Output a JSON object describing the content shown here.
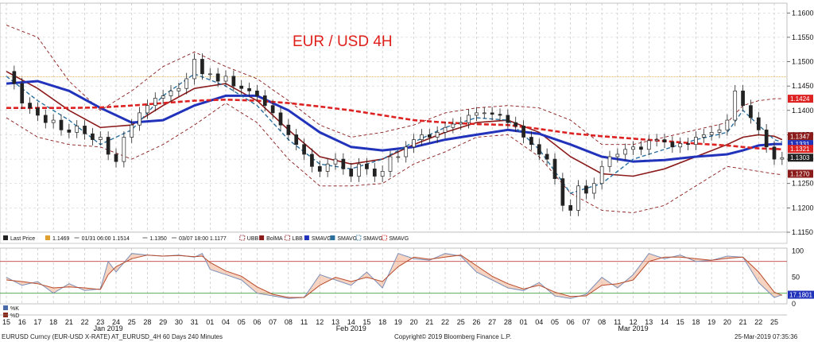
{
  "chart_data": {
    "type": "line",
    "title": "EUR / USD 4H",
    "footer": {
      "left": "EURUSD Curncy (EUR-USD X-RATE) AT_EURUSD_4H 60 Days 240 Minutes",
      "center": "Copyright© 2019 Bloomberg Finance L.P.",
      "right": "25-Mar-2019 07:35:36"
    },
    "colors": {
      "candle": "#222222",
      "ubb": "#8b1a1a",
      "bolma": "#8b1a1a",
      "sma_slow": "#2233bb",
      "sma_fast": "#2a6f9e",
      "sma_red": "#dd2222",
      "pivot": "#e0a030",
      "k_line": "#7a8fb8",
      "d_line": "#b84a2a",
      "fill_band": "#f0b090"
    },
    "legend": [
      {
        "label": "Last Price",
        "color": "#222222",
        "icon": "square-icon"
      },
      {
        "label": "1.1469",
        "color": "#e0a030",
        "icon": "square-icon"
      },
      {
        "label": "01/31 06:00 1.1514",
        "color": "#666666",
        "icon": "line-icon"
      },
      {
        "label": "1.1350",
        "color": "#666666",
        "icon": "line-icon"
      },
      {
        "label": "03/07 18:00 1.1177",
        "color": "#666666",
        "icon": "line-icon"
      },
      {
        "label": "UBB",
        "color": "#8b1a1a",
        "icon": "dash-icon"
      },
      {
        "label": "BolMA",
        "color": "#8b1a1a",
        "icon": "square-icon"
      },
      {
        "label": "LBB",
        "color": "#8b1a1a",
        "icon": "dash-icon"
      },
      {
        "label": "SMAVG",
        "color": "#2233bb",
        "icon": "square-icon"
      },
      {
        "label": "SMAVG",
        "color": "#2a6f9e",
        "icon": "square-icon"
      },
      {
        "label": "SMAVG",
        "color": "#2a6f9e",
        "icon": "dash-icon"
      },
      {
        "label": "SMAVG",
        "color": "#dd2222",
        "icon": "dash-icon"
      }
    ],
    "indicator_legend": [
      {
        "label": "%K",
        "color": "#4a6aa8"
      },
      {
        "label": "%D",
        "color": "#8b2a1a"
      }
    ],
    "x_day_labels": [
      "15",
      "16",
      "17",
      "18",
      "21",
      "22",
      "23",
      "24",
      "25",
      "28",
      "29",
      "30",
      "31",
      "01",
      "04",
      "05",
      "06",
      "07",
      "08",
      "11",
      "12",
      "13",
      "14",
      "15",
      "18",
      "19",
      "20",
      "21",
      "22",
      "25",
      "26",
      "27",
      "28",
      "01",
      "04",
      "05",
      "06",
      "07",
      "08",
      "11",
      "12",
      "13",
      "14",
      "15",
      "18",
      "19",
      "20",
      "21",
      "22",
      "25"
    ],
    "x_month_labels": [
      {
        "label": "Jan 2019",
        "index": 6.5
      },
      {
        "label": "Feb 2019",
        "index": 22
      },
      {
        "label": "Mar 2019",
        "index": 40
      }
    ],
    "price_axis": {
      "ylim": [
        1.115,
        1.162
      ],
      "ticks": [
        "1.1600",
        "1.1550",
        "1.1500",
        "1.1450",
        "1.1400",
        "1.1350",
        "1.1300",
        "1.1250",
        "1.1200",
        "1.1150"
      ]
    },
    "price_badges": [
      {
        "label": "1.1424",
        "value": 1.1424,
        "color": "#dd2222"
      },
      {
        "label": "1.1347",
        "value": 1.1347,
        "color": "#8b1a1a"
      },
      {
        "label": "1.1331",
        "value": 1.1331,
        "color": "#2233bb"
      },
      {
        "label": "1.1321",
        "value": 1.1321,
        "color": "#dd2222"
      },
      {
        "label": "1.1303",
        "value": 1.1303,
        "color": "#222222"
      },
      {
        "label": "1.1270",
        "value": 1.127,
        "color": "#8b1a1a"
      }
    ],
    "pivot_level": 1.1469,
    "indicator_axis": {
      "ylim": [
        0,
        105
      ],
      "ticks": [
        "100",
        "50",
        "0"
      ],
      "upper_level": 80,
      "lower_level": 20
    },
    "indicator_badge": {
      "label": "17.1801",
      "value": 17.18,
      "color": "#2233bb"
    },
    "series": [
      {
        "name": "Last Price",
        "x": [
          0,
          0.5,
          1,
          1.5,
          2,
          2.5,
          3,
          3.5,
          4,
          4.5,
          5,
          5.5,
          6,
          6.5,
          7,
          7.5,
          8,
          8.5,
          9,
          9.5,
          10,
          10.5,
          11,
          11.5,
          12,
          12.5,
          13,
          13.5,
          14,
          14.5,
          15,
          15.5,
          16,
          16.5,
          17,
          17.5,
          18,
          18.5,
          19,
          19.5,
          20,
          20.5,
          21,
          21.5,
          22,
          22.5,
          23,
          23.5,
          24,
          24.5,
          25,
          25.5,
          26,
          26.5,
          27,
          27.5,
          28,
          28.5,
          29,
          29.5,
          30,
          30.5,
          31,
          31.5,
          32,
          32.5,
          33,
          33.5,
          34,
          34.5,
          35,
          35.5,
          36,
          36.5,
          37,
          37.5,
          38,
          38.5,
          39,
          39.5,
          40,
          40.5,
          41,
          41.5,
          42,
          42.5,
          43,
          43.5,
          44,
          44.5,
          45,
          45.5,
          46,
          46.5,
          47,
          47.5,
          48,
          48.5,
          49,
          49.5
        ],
        "values": [
          1.148,
          1.1455,
          1.1415,
          1.1405,
          1.139,
          1.1375,
          1.138,
          1.136,
          1.1355,
          1.1368,
          1.1352,
          1.134,
          1.1345,
          1.131,
          1.1295,
          1.1345,
          1.137,
          1.1395,
          1.141,
          1.1425,
          1.143,
          1.144,
          1.1445,
          1.1465,
          1.1505,
          1.1475,
          1.1475,
          1.146,
          1.147,
          1.145,
          1.1445,
          1.144,
          1.143,
          1.141,
          1.1395,
          1.137,
          1.135,
          1.133,
          1.131,
          1.1285,
          1.1275,
          1.129,
          1.13,
          1.128,
          1.1265,
          1.129,
          1.128,
          1.1265,
          1.1275,
          1.1305,
          1.1305,
          1.1325,
          1.134,
          1.135,
          1.1345,
          1.1355,
          1.1365,
          1.1372,
          1.1375,
          1.139,
          1.1395,
          1.1395,
          1.1392,
          1.139,
          1.1375,
          1.1368,
          1.1345,
          1.133,
          1.131,
          1.13,
          1.126,
          1.1205,
          1.1195,
          1.1245,
          1.123,
          1.125,
          1.1285,
          1.1305,
          1.131,
          1.132,
          1.1325,
          1.132,
          1.1338,
          1.134,
          1.1335,
          1.1325,
          1.1332,
          1.133,
          1.1345,
          1.135,
          1.1355,
          1.136,
          1.138,
          1.144,
          1.141,
          1.1385,
          1.136,
          1.1325,
          1.13,
          1.1303
        ]
      },
      {
        "name": "BolMA",
        "x": [
          0,
          2,
          4,
          6,
          8,
          10,
          12,
          14,
          16,
          18,
          20,
          22,
          24,
          26,
          28,
          30,
          32,
          34,
          36,
          38,
          40,
          42,
          44,
          46,
          47,
          48,
          49,
          49.5
        ],
        "values": [
          1.148,
          1.1445,
          1.14,
          1.1365,
          1.137,
          1.141,
          1.1445,
          1.1455,
          1.142,
          1.136,
          1.1305,
          1.129,
          1.13,
          1.133,
          1.1355,
          1.1375,
          1.138,
          1.1355,
          1.1305,
          1.127,
          1.1265,
          1.128,
          1.1305,
          1.133,
          1.1345,
          1.135,
          1.1347,
          1.134
        ]
      },
      {
        "name": "UBB",
        "x": [
          0,
          2,
          4,
          6,
          8,
          10,
          12,
          14,
          16,
          18,
          20,
          22,
          24,
          26,
          28,
          30,
          32,
          34,
          36,
          38,
          40,
          42,
          44,
          46,
          47,
          48,
          49,
          49.5
        ],
        "values": [
          1.1575,
          1.155,
          1.146,
          1.14,
          1.144,
          1.149,
          1.152,
          1.149,
          1.1465,
          1.142,
          1.137,
          1.1345,
          1.1355,
          1.137,
          1.1395,
          1.1405,
          1.141,
          1.1405,
          1.138,
          1.133,
          1.133,
          1.1345,
          1.136,
          1.1375,
          1.141,
          1.142,
          1.1424,
          1.1424
        ]
      },
      {
        "name": "LBB",
        "x": [
          0,
          2,
          4,
          6,
          8,
          10,
          12,
          14,
          16,
          18,
          20,
          22,
          24,
          26,
          28,
          30,
          32,
          34,
          36,
          38,
          40,
          42,
          44,
          46,
          47,
          48,
          49,
          49.5
        ],
        "values": [
          1.1385,
          1.1345,
          1.133,
          1.1325,
          1.13,
          1.133,
          1.137,
          1.1415,
          1.1375,
          1.13,
          1.1245,
          1.1245,
          1.125,
          1.129,
          1.1315,
          1.1345,
          1.135,
          1.1305,
          1.123,
          1.1195,
          1.119,
          1.1205,
          1.1245,
          1.1285,
          1.128,
          1.1275,
          1.127,
          1.1268
        ]
      },
      {
        "name": "SMAVG",
        "x": [
          0,
          2,
          4,
          6,
          8,
          10,
          12,
          14,
          16,
          18,
          20,
          22,
          24,
          26,
          28,
          30,
          32,
          34,
          36,
          38,
          40,
          42,
          44,
          46,
          47,
          48,
          49,
          49.5
        ],
        "values": [
          1.1455,
          1.146,
          1.144,
          1.1405,
          1.1375,
          1.138,
          1.141,
          1.143,
          1.143,
          1.14,
          1.1355,
          1.1325,
          1.1318,
          1.1325,
          1.134,
          1.135,
          1.136,
          1.1352,
          1.133,
          1.1305,
          1.1295,
          1.1298,
          1.1305,
          1.131,
          1.1318,
          1.1328,
          1.1331,
          1.1331
        ]
      },
      {
        "name": "SMAVG",
        "x": [
          0,
          2,
          4,
          6,
          8,
          10,
          12,
          14,
          16,
          18,
          20,
          22,
          24,
          26,
          28,
          30,
          32,
          34,
          36,
          38,
          40,
          42,
          44,
          46,
          47,
          48,
          49,
          49.5
        ],
        "values": [
          1.147,
          1.142,
          1.138,
          1.133,
          1.136,
          1.143,
          1.1475,
          1.145,
          1.141,
          1.134,
          1.129,
          1.128,
          1.13,
          1.1335,
          1.1365,
          1.1385,
          1.138,
          1.132,
          1.123,
          1.125,
          1.13,
          1.132,
          1.134,
          1.1355,
          1.14,
          1.137,
          1.134,
          1.1335
        ]
      },
      {
        "name": "SMAVG",
        "x": [
          0,
          2,
          4,
          6,
          8,
          10,
          12,
          14,
          16,
          18,
          20,
          22,
          24,
          26,
          28,
          30,
          32,
          34,
          36,
          38,
          40,
          42,
          44,
          46,
          47,
          48,
          49,
          49.5
        ],
        "values": [
          1.1405,
          1.1405,
          1.1405,
          1.1406,
          1.141,
          1.1415,
          1.142,
          1.1422,
          1.142,
          1.1415,
          1.1408,
          1.14,
          1.139,
          1.138,
          1.1375,
          1.1372,
          1.137,
          1.1362,
          1.1353,
          1.1347,
          1.1342,
          1.1337,
          1.1332,
          1.1328,
          1.1325,
          1.1322,
          1.1321,
          1.132
        ]
      }
    ],
    "indicator_series": [
      {
        "name": "%K",
        "x": [
          0,
          1,
          2,
          3,
          4,
          5,
          6,
          6.5,
          7,
          8,
          9,
          10,
          11,
          12,
          12.5,
          13,
          14,
          15,
          16,
          17,
          18,
          19,
          20,
          21,
          22,
          23,
          24,
          25,
          26,
          27,
          28,
          29,
          30,
          31,
          32,
          33,
          34,
          35,
          36,
          37,
          38,
          39,
          40,
          41,
          42,
          43,
          44,
          45,
          46,
          47,
          48,
          49,
          49.5
        ],
        "values": [
          50,
          35,
          42,
          20,
          38,
          25,
          28,
          80,
          60,
          95,
          92,
          90,
          92,
          88,
          95,
          65,
          55,
          45,
          20,
          15,
          10,
          12,
          55,
          45,
          35,
          60,
          30,
          95,
          85,
          82,
          95,
          90,
          60,
          45,
          30,
          25,
          40,
          15,
          10,
          18,
          50,
          30,
          55,
          95,
          85,
          92,
          80,
          82,
          90,
          88,
          40,
          12,
          17
        ]
      },
      {
        "name": "%D",
        "x": [
          0,
          1,
          2,
          3,
          4,
          5,
          6,
          6.5,
          7,
          8,
          9,
          10,
          11,
          12,
          12.5,
          13,
          14,
          15,
          16,
          17,
          18,
          19,
          20,
          21,
          22,
          23,
          24,
          25,
          26,
          27,
          28,
          29,
          30,
          31,
          32,
          33,
          34,
          35,
          36,
          37,
          38,
          39,
          40,
          41,
          42,
          43,
          44,
          45,
          46,
          47,
          48,
          49,
          49.5
        ],
        "values": [
          45,
          42,
          38,
          30,
          32,
          30,
          27,
          55,
          70,
          85,
          92,
          90,
          91,
          89,
          90,
          78,
          62,
          52,
          32,
          18,
          12,
          12,
          35,
          50,
          42,
          50,
          42,
          70,
          88,
          84,
          88,
          92,
          72,
          52,
          38,
          28,
          35,
          22,
          14,
          15,
          35,
          38,
          45,
          80,
          88,
          88,
          85,
          82,
          86,
          88,
          60,
          22,
          16
        ]
      }
    ]
  }
}
